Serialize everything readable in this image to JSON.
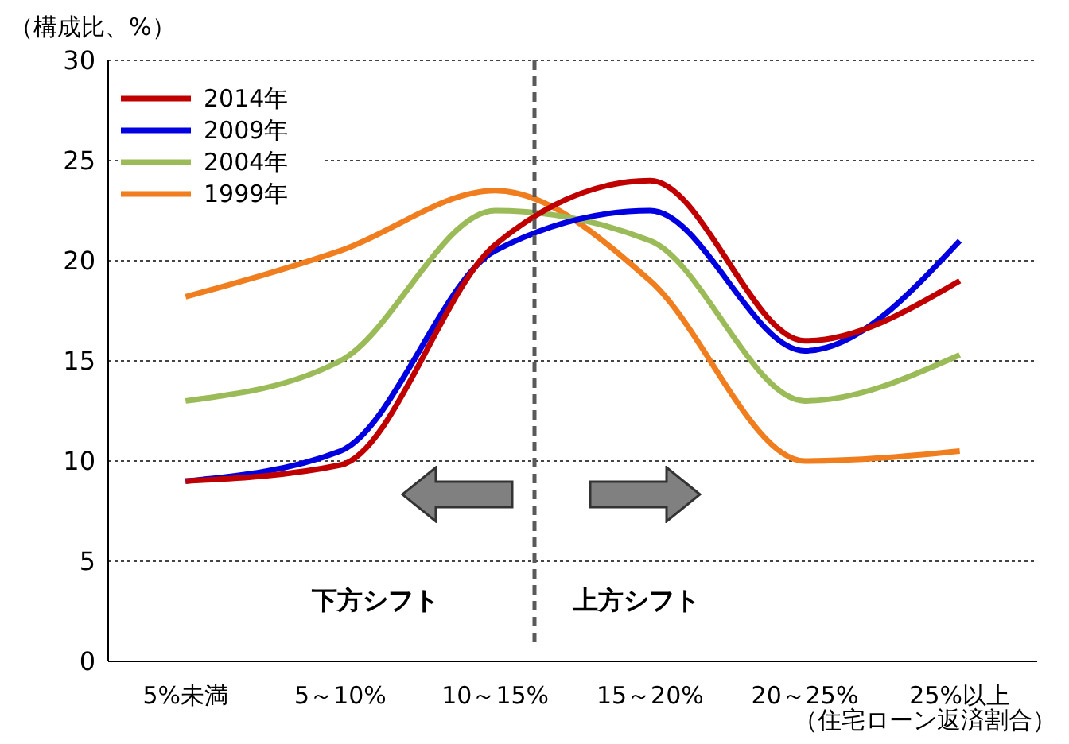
{
  "chart_data": {
    "type": "line",
    "ylabel": "（構成比、%）",
    "xlabel": "（住宅ローン返済割合）",
    "categories": [
      "5%未満",
      "5～10%",
      "10～15%",
      "15～20%",
      "20～25%",
      "25%以上"
    ],
    "series": [
      {
        "name": "2014年",
        "color": "#c00000",
        "values": [
          9,
          9.8,
          20.8,
          24,
          16,
          19
        ]
      },
      {
        "name": "2009年",
        "color": "#0000e0",
        "values": [
          9,
          10.5,
          20.5,
          22.5,
          15.5,
          21
        ]
      },
      {
        "name": "2004年",
        "color": "#9bbb59",
        "values": [
          13,
          15,
          22.5,
          21,
          13,
          15.3
        ]
      },
      {
        "name": "1999年",
        "color": "#f07d1e",
        "values": [
          18.2,
          20.5,
          23.5,
          19,
          10,
          10.5
        ]
      }
    ],
    "ylim": [
      0,
      30
    ],
    "yticks": [
      0,
      5,
      10,
      15,
      20,
      25,
      30
    ],
    "grid": "y",
    "legend": "top left",
    "marker": "none",
    "line_style": "solid",
    "annotations": [
      "下方シフト",
      "上方シフト"
    ]
  }
}
